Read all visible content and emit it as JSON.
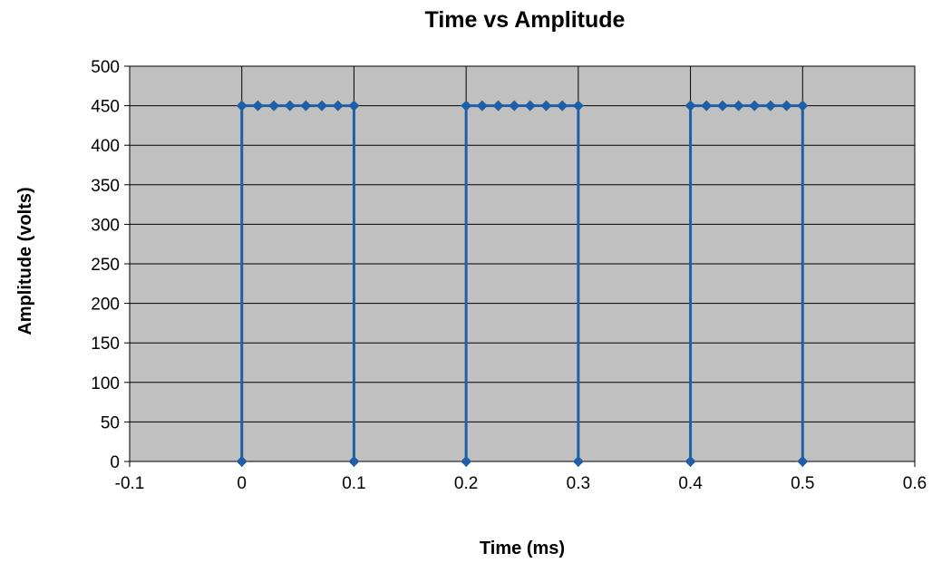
{
  "chart_data": {
    "type": "line",
    "title": "Time vs Amplitude",
    "xlabel": "Time (ms)",
    "ylabel": "Amplitude (volts)",
    "xlim": [
      -0.1,
      0.6
    ],
    "ylim": [
      0,
      500
    ],
    "x_ticks": [
      "-0.1",
      "0",
      "0.1",
      "0.2",
      "0.3",
      "0.4",
      "0.5",
      "0.6"
    ],
    "y_ticks": [
      "0",
      "50",
      "100",
      "150",
      "200",
      "250",
      "300",
      "350",
      "400",
      "450",
      "500"
    ],
    "grid": true,
    "legend": "none",
    "colors": {
      "plot_background": "#c0c0c0",
      "gridline": "#000000",
      "series": "#1f5fa8"
    },
    "series": [
      {
        "x": [
          0,
          0,
          0.0143,
          0.0286,
          0.0429,
          0.0571,
          0.0714,
          0.0857,
          0.1,
          0.1,
          0.2,
          0.2,
          0.2143,
          0.2286,
          0.2429,
          0.2571,
          0.2714,
          0.2857,
          0.3,
          0.3,
          0.4,
          0.4,
          0.4143,
          0.4286,
          0.4429,
          0.4571,
          0.4714,
          0.4857,
          0.5,
          0.5
        ],
        "y": [
          0,
          450,
          450,
          450,
          450,
          450,
          450,
          450,
          450,
          0,
          0,
          450,
          450,
          450,
          450,
          450,
          450,
          450,
          450,
          0,
          0,
          450,
          450,
          450,
          450,
          450,
          450,
          450,
          450,
          0
        ],
        "segment_breaks_after": [
          9,
          19
        ]
      }
    ]
  }
}
